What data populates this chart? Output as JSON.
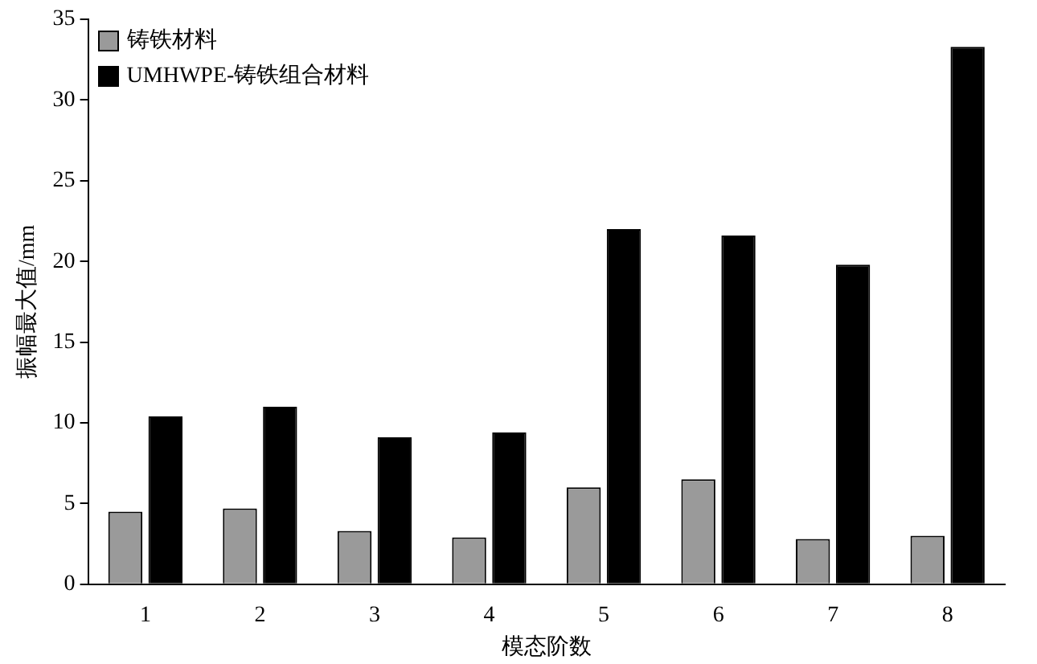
{
  "chart_data": {
    "type": "bar",
    "xlabel": "模态阶数",
    "ylabel": "振幅最大值/mm",
    "categories": [
      "1",
      "2",
      "3",
      "4",
      "5",
      "6",
      "7",
      "8"
    ],
    "series": [
      {
        "name": "铸铁材料",
        "color": "#9a9a9a",
        "values": [
          4.5,
          4.7,
          3.3,
          2.9,
          6.0,
          6.5,
          2.8,
          3.0
        ]
      },
      {
        "name": "UMHWPE-铸铁组合材料",
        "color": "#000000",
        "values": [
          10.4,
          11.0,
          9.1,
          9.4,
          22.0,
          21.6,
          19.8,
          33.3
        ]
      }
    ],
    "ylim": [
      0,
      35
    ],
    "yticks": [
      0,
      5,
      10,
      15,
      20,
      25,
      30,
      35
    ],
    "grid": false,
    "legend": "top left"
  }
}
